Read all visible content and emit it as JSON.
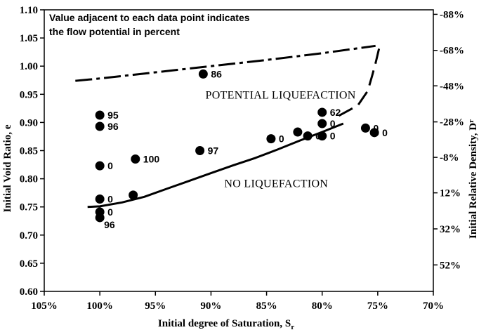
{
  "chart_data": {
    "type": "scatter",
    "xlabel": "Initial degree of Saturation, S",
    "xlabel_sub": "r",
    "ylabel": "Initial Void Ratio, e",
    "y2label": "Initial Relative Density, D",
    "y2label_sub": "r",
    "x_reversed": true,
    "xlim": [
      105,
      70
    ],
    "ylim": [
      0.6,
      1.1
    ],
    "x_ticks": [
      105,
      100,
      95,
      90,
      85,
      80,
      75,
      70
    ],
    "x_tick_labels": [
      "105%",
      "100%",
      "95%",
      "90%",
      "85%",
      "80%",
      "75%",
      "70%"
    ],
    "y_ticks": [
      0.6,
      0.65,
      0.7,
      0.75,
      0.8,
      0.85,
      0.9,
      0.95,
      1.0,
      1.05,
      1.1
    ],
    "y_tick_labels": [
      "0.60",
      "0.65",
      "0.70",
      "0.75",
      "0.80",
      "0.85",
      "0.90",
      "0.95",
      "1.00",
      "1.05",
      "1.10"
    ],
    "y2_ticks_at_e": [
      0.647,
      0.711,
      0.775,
      0.838,
      0.901,
      0.965,
      1.028,
      1.092
    ],
    "y2_tick_labels": [
      "52%",
      "32%",
      "12%",
      "-8%",
      "-28%",
      "-48%",
      "-68%",
      "-88%"
    ],
    "grid": false,
    "legend": "none",
    "annotation": [
      "Value adjacent to each data point indicates",
      "the flow potential in percent"
    ],
    "regions": [
      {
        "text": "POTENTIAL LIQUEFACTION",
        "x": 90.5,
        "y": 0.942
      },
      {
        "text": "NO LIQUEFACTION",
        "x": 88.8,
        "y": 0.785
      }
    ],
    "points": [
      {
        "x": 100.0,
        "y": 0.913,
        "label": "95"
      },
      {
        "x": 100.0,
        "y": 0.893,
        "label": "96"
      },
      {
        "x": 100.0,
        "y": 0.823,
        "label": "0"
      },
      {
        "x": 100.0,
        "y": 0.764,
        "label": "0"
      },
      {
        "x": 100.0,
        "y": 0.741,
        "label": "0"
      },
      {
        "x": 100.0,
        "y": 0.731,
        "label": "96"
      },
      {
        "x": 97.0,
        "y": 0.771,
        "label": ""
      },
      {
        "x": 96.8,
        "y": 0.835,
        "label": "100"
      },
      {
        "x": 91.0,
        "y": 0.85,
        "label": "97"
      },
      {
        "x": 90.7,
        "y": 0.986,
        "label": "86"
      },
      {
        "x": 84.6,
        "y": 0.871,
        "label": "0"
      },
      {
        "x": 82.2,
        "y": 0.883,
        "label": ""
      },
      {
        "x": 81.3,
        "y": 0.876,
        "label": "0"
      },
      {
        "x": 80.0,
        "y": 0.918,
        "label": "62"
      },
      {
        "x": 80.0,
        "y": 0.898,
        "label": "0"
      },
      {
        "x": 80.0,
        "y": 0.876,
        "label": "0"
      },
      {
        "x": 76.1,
        "y": 0.89,
        "label": "0"
      },
      {
        "x": 75.3,
        "y": 0.882,
        "label": "0"
      }
    ],
    "series": [
      {
        "style": "solid",
        "x": [
          101.1,
          100.0,
          98.0,
          96.0,
          94.0,
          92.0,
          90.0,
          88.0,
          86.0,
          84.0,
          82.0,
          80.0,
          78.1
        ],
        "y": [
          0.75,
          0.751,
          0.758,
          0.768,
          0.782,
          0.796,
          0.81,
          0.824,
          0.837,
          0.852,
          0.868,
          0.883,
          0.898
        ]
      },
      {
        "style": "dash",
        "x": [
          78.5,
          76.8,
          75.9,
          75.5,
          75.2,
          74.8
        ],
        "y": [
          0.912,
          0.93,
          0.956,
          0.983,
          1.005,
          1.038
        ]
      },
      {
        "style": "dashdot",
        "x": [
          102.2,
          100.0,
          95.0,
          90.0,
          85.0,
          80.0,
          75.2
        ],
        "y": [
          0.974,
          0.978,
          0.989,
          1.0,
          1.011,
          1.023,
          1.036
        ]
      }
    ]
  }
}
